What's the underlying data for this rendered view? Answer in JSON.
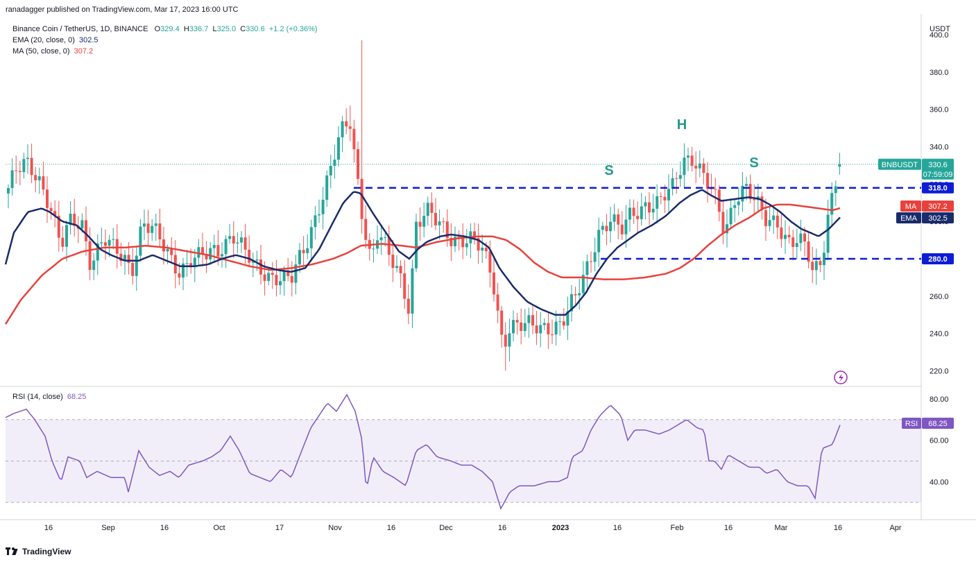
{
  "header": {
    "published": "ranadagger published on TradingView.com, Mar 17, 2023 16:00 UTC"
  },
  "legend": {
    "symbol": "Binance Coin / TetherUS, 1D, BINANCE",
    "o_label": "O",
    "o": "329.4",
    "h_label": "H",
    "h": "336.7",
    "l_label": "L",
    "l": "325.0",
    "c_label": "C",
    "c": "330.6",
    "change": "+1.2 (+0.36%)",
    "ema_label": "EMA (20, close, 0)",
    "ema_value": "302.5",
    "ma_label": "MA (50, close, 0)",
    "ma_value": "307.2",
    "rsi_label": "RSI (14, close)",
    "rsi_value": "68.25"
  },
  "footer": {
    "brand": "TradingView"
  },
  "colors": {
    "up": "#26a69a",
    "down": "#ef5350",
    "ema": "#1a2b6b",
    "ma": "#e8413c",
    "rsi": "#7e57c2",
    "level": "#0d1dd6",
    "annotation": "#22998a"
  },
  "chart_data": {
    "type": "candlestick",
    "currency": "USDT",
    "price_axis": {
      "range": [
        212,
        400
      ],
      "ticks": [
        "220.0",
        "240.0",
        "260.0",
        "280.0",
        "300.0",
        "320.0",
        "340.0",
        "360.0",
        "380.0",
        "400.0"
      ]
    },
    "rsi_axis": {
      "range": [
        22,
        86
      ],
      "ticks": [
        "40.00",
        "60.00",
        "80.00"
      ],
      "bands": [
        30,
        70
      ]
    },
    "x_ticks": [
      "16",
      "Sep",
      "16",
      "Oct",
      "17",
      "Nov",
      "16",
      "Dec",
      "16",
      "2023",
      "16",
      "Feb",
      "16",
      "Mar",
      "16",
      "Apr"
    ],
    "price_tags": [
      {
        "label": "BNBUSDT",
        "value": "330.6",
        "countdown": "07:59:09"
      },
      {
        "label": "MA",
        "value": "307.2"
      },
      {
        "label": "EMA",
        "value": "302.5"
      }
    ],
    "levels": [
      {
        "value": "318.0",
        "y": 318
      },
      {
        "value": "280.0",
        "y": 280
      }
    ],
    "annotations": [
      "S",
      "H",
      "S"
    ],
    "rsi_tag": {
      "label": "RSI",
      "value": "68.25"
    },
    "anchors": [
      [
        8,
        315
      ],
      [
        22,
        325
      ],
      [
        38,
        330
      ],
      [
        55,
        325
      ],
      [
        72,
        310
      ],
      [
        88,
        285
      ],
      [
        100,
        298
      ],
      [
        118,
        300
      ],
      [
        130,
        280
      ],
      [
        150,
        290
      ],
      [
        165,
        283
      ],
      [
        180,
        280
      ],
      [
        190,
        275
      ],
      [
        205,
        300
      ],
      [
        220,
        295
      ],
      [
        240,
        283
      ],
      [
        258,
        275
      ],
      [
        275,
        280
      ],
      [
        295,
        280
      ],
      [
        315,
        285
      ],
      [
        335,
        295
      ],
      [
        350,
        285
      ],
      [
        365,
        275
      ],
      [
        385,
        272
      ],
      [
        400,
        272
      ],
      [
        420,
        268
      ],
      [
        440,
        285
      ],
      [
        460,
        310
      ],
      [
        478,
        330
      ],
      [
        490,
        345
      ],
      [
        505,
        352
      ],
      [
        520,
        310
      ],
      [
        535,
        280
      ],
      [
        545,
        295
      ],
      [
        560,
        280
      ],
      [
        575,
        272
      ],
      [
        590,
        255
      ],
      [
        600,
        300
      ],
      [
        615,
        305
      ],
      [
        630,
        298
      ],
      [
        650,
        292
      ],
      [
        665,
        292
      ],
      [
        680,
        290
      ],
      [
        695,
        283
      ],
      [
        710,
        270
      ],
      [
        725,
        235
      ],
      [
        735,
        245
      ],
      [
        750,
        243
      ],
      [
        770,
        243
      ],
      [
        790,
        245
      ],
      [
        810,
        245
      ],
      [
        830,
        258
      ],
      [
        848,
        278
      ],
      [
        862,
        295
      ],
      [
        880,
        300
      ],
      [
        895,
        293
      ],
      [
        910,
        305
      ],
      [
        930,
        310
      ],
      [
        950,
        308
      ],
      [
        970,
        318
      ],
      [
        985,
        335
      ],
      [
        1000,
        335
      ],
      [
        1015,
        322
      ],
      [
        1030,
        312
      ],
      [
        1045,
        295
      ],
      [
        1060,
        315
      ],
      [
        1075,
        318
      ],
      [
        1090,
        308
      ],
      [
        1105,
        300
      ],
      [
        1120,
        302
      ],
      [
        1135,
        290
      ],
      [
        1150,
        288
      ],
      [
        1162,
        285
      ],
      [
        1172,
        272
      ],
      [
        1185,
        282
      ],
      [
        1195,
        308
      ],
      [
        1210,
        330
      ]
    ],
    "ema_anchors": [
      [
        8,
        277
      ],
      [
        20,
        294
      ],
      [
        40,
        305
      ],
      [
        60,
        307
      ],
      [
        72,
        305
      ],
      [
        90,
        300
      ],
      [
        110,
        298
      ],
      [
        125,
        293
      ],
      [
        145,
        285
      ],
      [
        160,
        282
      ],
      [
        180,
        279
      ],
      [
        200,
        279
      ],
      [
        220,
        282
      ],
      [
        240,
        279
      ],
      [
        260,
        276
      ],
      [
        280,
        276
      ],
      [
        300,
        277
      ],
      [
        320,
        280
      ],
      [
        340,
        282
      ],
      [
        360,
        280
      ],
      [
        380,
        276
      ],
      [
        400,
        274
      ],
      [
        420,
        273
      ],
      [
        440,
        275
      ],
      [
        460,
        285
      ],
      [
        478,
        298
      ],
      [
        495,
        310
      ],
      [
        510,
        316
      ],
      [
        520,
        315
      ],
      [
        540,
        303
      ],
      [
        560,
        292
      ],
      [
        575,
        284
      ],
      [
        590,
        280
      ],
      [
        602,
        285
      ],
      [
        615,
        289
      ],
      [
        635,
        292
      ],
      [
        650,
        293
      ],
      [
        670,
        292
      ],
      [
        690,
        290
      ],
      [
        705,
        286
      ],
      [
        720,
        275
      ],
      [
        740,
        265
      ],
      [
        760,
        257
      ],
      [
        780,
        253
      ],
      [
        800,
        250
      ],
      [
        815,
        250
      ],
      [
        830,
        255
      ],
      [
        845,
        262
      ],
      [
        860,
        272
      ],
      [
        875,
        280
      ],
      [
        890,
        286
      ],
      [
        905,
        290
      ],
      [
        920,
        294
      ],
      [
        940,
        298
      ],
      [
        960,
        303
      ],
      [
        980,
        310
      ],
      [
        995,
        314
      ],
      [
        1012,
        317
      ],
      [
        1025,
        314
      ],
      [
        1040,
        311
      ],
      [
        1060,
        312
      ],
      [
        1080,
        313
      ],
      [
        1095,
        312
      ],
      [
        1110,
        309
      ],
      [
        1125,
        305
      ],
      [
        1140,
        300
      ],
      [
        1155,
        296
      ],
      [
        1168,
        294
      ],
      [
        1180,
        292
      ],
      [
        1195,
        296
      ],
      [
        1212,
        302.5
      ]
    ],
    "ma_anchors": [
      [
        8,
        245
      ],
      [
        30,
        258
      ],
      [
        60,
        271
      ],
      [
        90,
        280
      ],
      [
        120,
        284
      ],
      [
        150,
        286
      ],
      [
        180,
        286
      ],
      [
        210,
        287
      ],
      [
        240,
        286
      ],
      [
        270,
        284
      ],
      [
        300,
        282
      ],
      [
        330,
        279
      ],
      [
        360,
        276
      ],
      [
        390,
        274
      ],
      [
        420,
        275
      ],
      [
        450,
        277
      ],
      [
        480,
        280
      ],
      [
        500,
        283
      ],
      [
        520,
        287
      ],
      [
        550,
        288
      ],
      [
        580,
        287
      ],
      [
        600,
        286
      ],
      [
        630,
        289
      ],
      [
        660,
        291
      ],
      [
        690,
        292
      ],
      [
        710,
        292
      ],
      [
        730,
        290
      ],
      [
        750,
        285
      ],
      [
        770,
        278
      ],
      [
        790,
        273
      ],
      [
        810,
        270
      ],
      [
        840,
        270
      ],
      [
        870,
        269
      ],
      [
        900,
        269
      ],
      [
        930,
        270
      ],
      [
        960,
        272
      ],
      [
        980,
        275
      ],
      [
        1000,
        280
      ],
      [
        1020,
        287
      ],
      [
        1040,
        293
      ],
      [
        1060,
        298
      ],
      [
        1080,
        302
      ],
      [
        1100,
        307
      ],
      [
        1120,
        309
      ],
      [
        1140,
        309
      ],
      [
        1160,
        308
      ],
      [
        1180,
        307
      ],
      [
        1200,
        306
      ],
      [
        1212,
        307.2
      ]
    ],
    "rsi_anchors": [
      [
        8,
        71
      ],
      [
        20,
        73
      ],
      [
        38,
        75
      ],
      [
        50,
        70
      ],
      [
        65,
        62
      ],
      [
        75,
        50
      ],
      [
        88,
        40
      ],
      [
        98,
        52
      ],
      [
        115,
        50
      ],
      [
        125,
        42
      ],
      [
        140,
        45
      ],
      [
        160,
        42
      ],
      [
        180,
        42
      ],
      [
        185,
        35
      ],
      [
        200,
        55
      ],
      [
        215,
        47
      ],
      [
        230,
        43
      ],
      [
        245,
        45
      ],
      [
        258,
        42
      ],
      [
        272,
        48
      ],
      [
        292,
        50
      ],
      [
        305,
        52
      ],
      [
        318,
        55
      ],
      [
        332,
        62
      ],
      [
        345,
        55
      ],
      [
        360,
        44
      ],
      [
        375,
        42
      ],
      [
        390,
        40
      ],
      [
        405,
        46
      ],
      [
        420,
        42
      ],
      [
        435,
        55
      ],
      [
        448,
        66
      ],
      [
        460,
        72
      ],
      [
        472,
        78
      ],
      [
        485,
        74
      ],
      [
        500,
        82
      ],
      [
        512,
        74
      ],
      [
        522,
        60
      ],
      [
        528,
        36
      ],
      [
        538,
        52
      ],
      [
        552,
        45
      ],
      [
        568,
        42
      ],
      [
        585,
        38
      ],
      [
        600,
        55
      ],
      [
        615,
        58
      ],
      [
        630,
        52
      ],
      [
        650,
        50
      ],
      [
        665,
        48
      ],
      [
        680,
        48
      ],
      [
        695,
        45
      ],
      [
        710,
        40
      ],
      [
        722,
        27
      ],
      [
        735,
        35
      ],
      [
        748,
        38
      ],
      [
        770,
        38
      ],
      [
        790,
        40
      ],
      [
        805,
        40
      ],
      [
        818,
        42
      ],
      [
        825,
        52
      ],
      [
        840,
        55
      ],
      [
        852,
        65
      ],
      [
        865,
        72
      ],
      [
        880,
        77
      ],
      [
        895,
        72
      ],
      [
        905,
        60
      ],
      [
        915,
        65
      ],
      [
        930,
        65
      ],
      [
        950,
        63
      ],
      [
        965,
        65
      ],
      [
        980,
        68
      ],
      [
        990,
        70
      ],
      [
        1005,
        66
      ],
      [
        1015,
        65
      ],
      [
        1022,
        50
      ],
      [
        1030,
        50
      ],
      [
        1040,
        46
      ],
      [
        1050,
        53
      ],
      [
        1065,
        50
      ],
      [
        1080,
        47
      ],
      [
        1095,
        47
      ],
      [
        1105,
        44
      ],
      [
        1120,
        46
      ],
      [
        1135,
        40
      ],
      [
        1150,
        38
      ],
      [
        1165,
        38
      ],
      [
        1175,
        32
      ],
      [
        1185,
        56
      ],
      [
        1200,
        58
      ],
      [
        1212,
        68.25
      ]
    ]
  }
}
